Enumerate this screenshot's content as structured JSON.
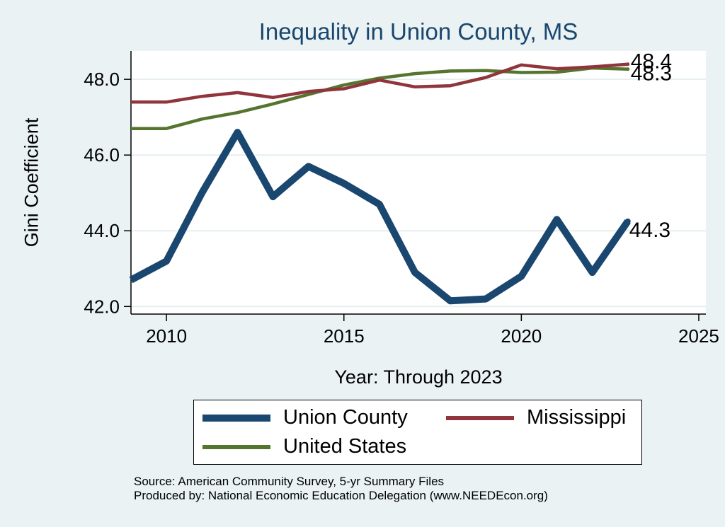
{
  "chart_data": {
    "type": "line",
    "title": "Inequality in Union County, MS",
    "xlabel": "Year: Through 2023",
    "ylabel": "Gini Coefficient",
    "xlim": [
      2009,
      2025.2
    ],
    "ylim": [
      41.8,
      48.75
    ],
    "xticks": [
      2010,
      2015,
      2020,
      2025
    ],
    "yticks": [
      42.0,
      44.0,
      46.0,
      48.0
    ],
    "ytick_labels": [
      "42.0",
      "44.0",
      "46.0",
      "48.0"
    ],
    "grid": true,
    "legend_position": "bottom",
    "series": [
      {
        "name": "Union County",
        "color": "#1a476f",
        "x": [
          2009,
          2010,
          2011,
          2012,
          2013,
          2014,
          2015,
          2016,
          2017,
          2018,
          2019,
          2020,
          2021,
          2022,
          2023
        ],
        "y": [
          42.7,
          43.2,
          45.0,
          46.6,
          44.9,
          45.7,
          45.25,
          44.7,
          42.9,
          42.15,
          42.2,
          42.8,
          44.3,
          42.9,
          44.25
        ],
        "end_label": "44.3"
      },
      {
        "name": "Mississippi",
        "color": "#90353b",
        "x": [
          2009,
          2010,
          2011,
          2012,
          2013,
          2014,
          2015,
          2016,
          2017,
          2018,
          2019,
          2020,
          2021,
          2022,
          2023
        ],
        "y": [
          47.4,
          47.4,
          47.55,
          47.65,
          47.52,
          47.68,
          47.75,
          47.98,
          47.8,
          47.83,
          48.05,
          48.38,
          48.28,
          48.33,
          48.4
        ],
        "end_label": "48.4"
      },
      {
        "name": "United States",
        "color": "#55752f",
        "x": [
          2009,
          2010,
          2011,
          2012,
          2013,
          2014,
          2015,
          2016,
          2017,
          2018,
          2019,
          2020,
          2021,
          2022,
          2023
        ],
        "y": [
          46.7,
          46.7,
          46.95,
          47.12,
          47.35,
          47.6,
          47.85,
          48.03,
          48.15,
          48.22,
          48.23,
          48.18,
          48.19,
          48.3,
          48.27
        ],
        "end_label": "48.3"
      }
    ]
  },
  "source_line": "Source: American Community Survey, 5-yr Summary Files",
  "produced_line": "Produced by: National Economic Education Delegation (www.NEEDEcon.org)"
}
